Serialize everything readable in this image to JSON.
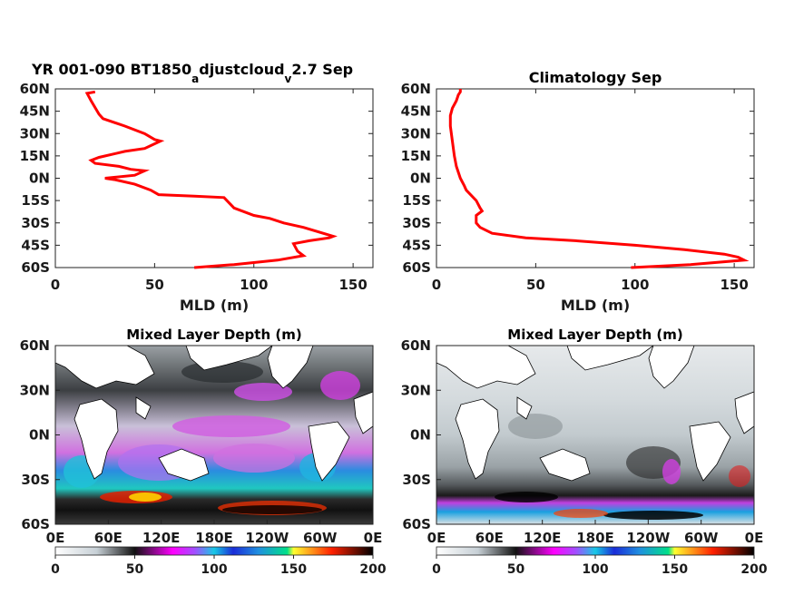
{
  "chart_data": [
    {
      "type": "line",
      "title_main": "YR 001-090 BT1850",
      "title_sub1": "a",
      "title_mid": "djustcloud",
      "title_sub2": "v",
      "title_end": "2.7 Sep",
      "xlabel": "MLD (m)",
      "xlim": [
        0,
        160
      ],
      "ylim": [
        -60,
        60
      ],
      "xticks": [
        0,
        50,
        100,
        150
      ],
      "yticks": [
        60,
        45,
        30,
        15,
        0,
        -15,
        -30,
        -45,
        -60
      ],
      "yticklabels": [
        "60N",
        "45N",
        "30N",
        "15N",
        "0N",
        "15S",
        "30S",
        "45S",
        "60S"
      ],
      "color": "#ff0000",
      "series": [
        {
          "x": [
            70,
            90,
            112,
            125,
            122,
            120,
            128,
            138,
            140,
            125,
            115,
            108,
            100,
            90,
            85,
            70,
            52,
            48,
            40,
            30,
            25,
            40,
            45,
            38,
            32,
            20,
            18,
            22,
            35,
            45,
            53,
            50,
            45,
            35,
            24,
            22,
            18,
            16,
            20
          ],
          "y": [
            -60,
            -58,
            -55,
            -52,
            -49,
            -44,
            -42,
            -40,
            -39,
            -33,
            -30,
            -27,
            -25,
            -20,
            -13,
            -12,
            -11,
            -8,
            -4,
            -1,
            0,
            2,
            5,
            6,
            8,
            10,
            12,
            14,
            18,
            20,
            25,
            26,
            30,
            35,
            40,
            43,
            52,
            57,
            58
          ]
        }
      ]
    },
    {
      "type": "line",
      "title": "Climatology Sep",
      "xlabel": "MLD (m)",
      "xlim": [
        0,
        160
      ],
      "ylim": [
        -60,
        60
      ],
      "xticks": [
        0,
        50,
        100,
        150
      ],
      "yticks": [
        60,
        45,
        30,
        15,
        0,
        -15,
        -30,
        -45,
        -60
      ],
      "yticklabels": [
        "60N",
        "45N",
        "30N",
        "15N",
        "0N",
        "15S",
        "30S",
        "45S",
        "60S"
      ],
      "color": "#ff0000",
      "series": [
        {
          "x": [
            98,
            128,
            155,
            152,
            145,
            125,
            100,
            70,
            45,
            28,
            22,
            20,
            20,
            23,
            22,
            20,
            15,
            14,
            12,
            10,
            9,
            8,
            7,
            7,
            8,
            10,
            11,
            12,
            12
          ],
          "y": [
            -60,
            -58,
            -55,
            -53,
            -51,
            -48,
            -45,
            -42,
            -40,
            -37,
            -33,
            -30,
            -25,
            -22,
            -20,
            -15,
            -8,
            -5,
            0,
            8,
            15,
            25,
            35,
            42,
            47,
            52,
            56,
            58,
            60
          ]
        }
      ]
    },
    {
      "type": "heatmap",
      "title": "Mixed Layer Depth (m)",
      "xticklabels": [
        "0E",
        "60E",
        "120E",
        "180E",
        "120W",
        "60W",
        "0E"
      ],
      "yticklabels": [
        "60N",
        "30N",
        "0N",
        "30S",
        "60S"
      ],
      "colorbar_ticks": [
        0,
        50,
        100,
        150,
        200
      ]
    },
    {
      "type": "heatmap",
      "title": "Mixed Layer Depth (m)",
      "xticklabels": [
        "0E",
        "60E",
        "120E",
        "180E",
        "120W",
        "60W",
        "0E"
      ],
      "yticklabels": [
        "60N",
        "30N",
        "0N",
        "30S",
        "60S"
      ],
      "colorbar_ticks": [
        0,
        50,
        100,
        150,
        200
      ]
    }
  ]
}
